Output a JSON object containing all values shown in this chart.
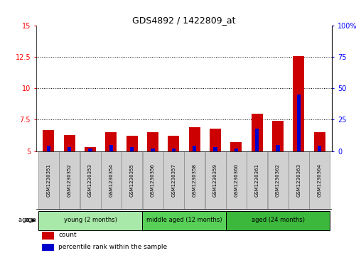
{
  "title": "GDS4892 / 1422809_at",
  "samples": [
    "GSM1230351",
    "GSM1230352",
    "GSM1230353",
    "GSM1230354",
    "GSM1230355",
    "GSM1230356",
    "GSM1230357",
    "GSM1230358",
    "GSM1230359",
    "GSM1230360",
    "GSM1230361",
    "GSM1230362",
    "GSM1230363",
    "GSM1230364"
  ],
  "count_values": [
    6.7,
    6.3,
    5.3,
    6.5,
    6.2,
    6.5,
    6.2,
    6.9,
    6.8,
    5.7,
    8.0,
    7.4,
    12.6,
    6.5
  ],
  "percentile_values": [
    4,
    3,
    2,
    5,
    3,
    2,
    2,
    4,
    3,
    2,
    18,
    5,
    45,
    4
  ],
  "baseline": 5.0,
  "ylim_left": [
    5,
    15
  ],
  "ylim_right": [
    0,
    100
  ],
  "yticks_left": [
    5,
    7.5,
    10,
    12.5,
    15
  ],
  "yticks_right": [
    0,
    25,
    50,
    75,
    100
  ],
  "ytick_labels_left": [
    "5",
    "7.5",
    "10",
    "12.5",
    "15"
  ],
  "ytick_labels_right": [
    "0",
    "25",
    "50",
    "75",
    "100%"
  ],
  "dotted_gridlines": [
    7.5,
    10,
    12.5
  ],
  "groups": [
    {
      "label": "young (2 months)",
      "start": 0,
      "end": 5,
      "color": "#a8e8a8"
    },
    {
      "label": "middle aged (12 months)",
      "start": 5,
      "end": 9,
      "color": "#58d058"
    },
    {
      "label": "aged (24 months)",
      "start": 9,
      "end": 14,
      "color": "#3cb83c"
    }
  ],
  "group_label": "age",
  "bar_color": "#cc0000",
  "percentile_color": "#0000cc",
  "bar_width": 0.55,
  "pct_bar_width": 0.18,
  "sample_box_color": "#d0d0d0",
  "legend_items": [
    {
      "label": "count",
      "color": "#cc0000"
    },
    {
      "label": "percentile rank within the sample",
      "color": "#0000cc"
    }
  ],
  "fig_width": 5.08,
  "fig_height": 3.63,
  "dpi": 100
}
